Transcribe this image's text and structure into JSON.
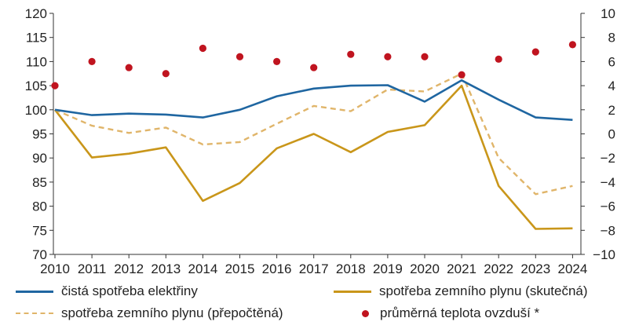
{
  "chart_data": {
    "type": "line",
    "x": [
      "2010",
      "2011",
      "2012",
      "2013",
      "2014",
      "2015",
      "2016",
      "2017",
      "2018",
      "2019",
      "2020",
      "2021",
      "2022",
      "2023",
      "2024"
    ],
    "ylim": [
      70,
      120
    ],
    "yticks": [
      "120",
      "115",
      "110",
      "105",
      "100",
      "95",
      "90",
      "85",
      "80",
      "75",
      "70"
    ],
    "y2lim": [
      -10,
      10
    ],
    "y2ticks": [
      "10",
      "8",
      "6",
      "4",
      "2",
      "0",
      "−2",
      "−4",
      "−6",
      "−8",
      "−10"
    ],
    "series": [
      {
        "name": "čistá spotřeba elektřiny",
        "axis": "left",
        "style": "solid",
        "color": "#1F66A1",
        "values": [
          100,
          98.9,
          99.2,
          99.0,
          98.4,
          100.0,
          102.8,
          104.4,
          105.0,
          105.1,
          101.7,
          106.1,
          102.1,
          98.4,
          97.9
        ]
      },
      {
        "name": "spotřeba zemního plynu (skutečná)",
        "axis": "left",
        "style": "solid",
        "color": "#C9961A",
        "values": [
          100,
          90.1,
          90.9,
          92.2,
          81.1,
          84.8,
          92.0,
          95.0,
          91.2,
          95.4,
          96.8,
          105.0,
          84.2,
          75.3,
          75.4
        ]
      },
      {
        "name": "spotřeba zemního plynu (přepočtěná)",
        "axis": "left",
        "style": "dashed",
        "color": "#E0B56A",
        "values": [
          100,
          96.7,
          95.2,
          96.3,
          92.8,
          93.3,
          97.1,
          100.8,
          99.7,
          104.2,
          103.8,
          107.5,
          90.0,
          82.5,
          84.2
        ]
      },
      {
        "name": "průměrná teplota ovzduší *",
        "axis": "right",
        "style": "dots",
        "color": "#C0141F",
        "values": [
          4.0,
          6.0,
          5.5,
          5.0,
          7.1,
          6.4,
          6.0,
          5.5,
          6.6,
          6.4,
          6.4,
          4.9,
          6.2,
          6.8,
          7.4
        ]
      }
    ],
    "grid": false,
    "legend_position": "bottom"
  },
  "legend": {
    "item1": "čistá spotřeba elektřiny",
    "item2": "spotřeba zemního plynu (skutečná)",
    "item3": "spotřeba zemního plynu (přepočtěná)",
    "item4": "průměrná teplota ovzduší *"
  }
}
